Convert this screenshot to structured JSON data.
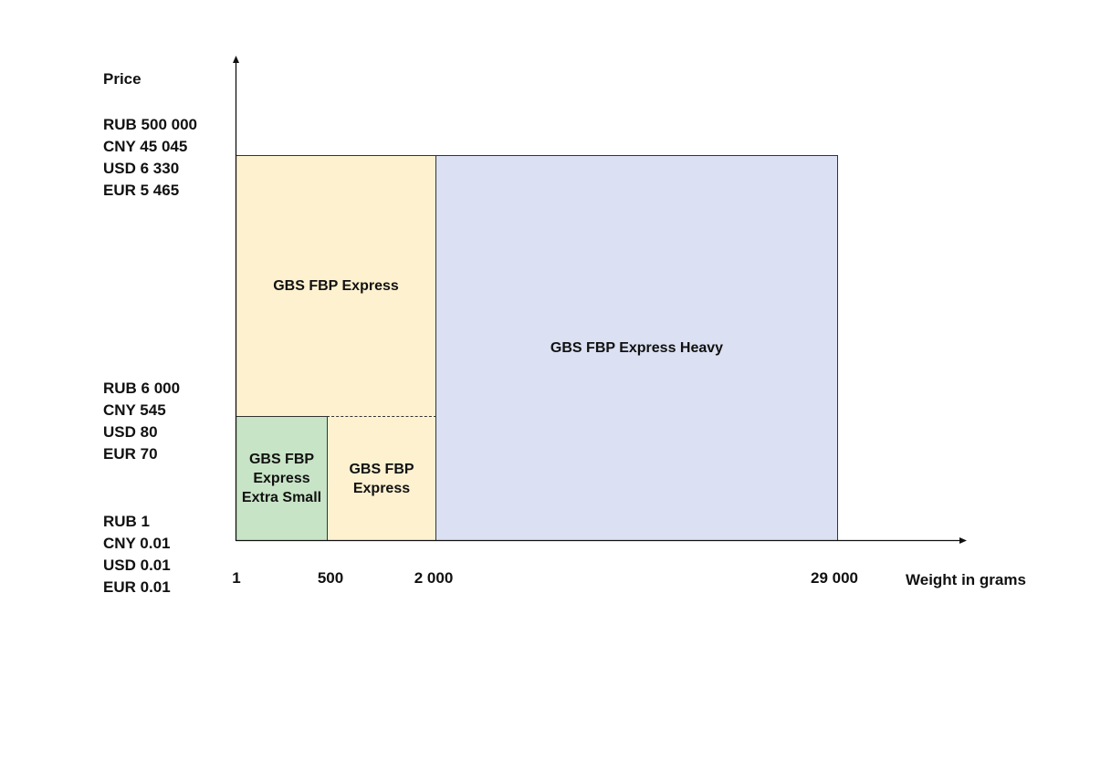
{
  "y_axis": {
    "title": "Price",
    "groups": [
      [
        "RUB 500 000",
        "CNY 45 045",
        "USD 6 330",
        "EUR 5 465"
      ],
      [
        "RUB 6 000",
        "CNY 545",
        "USD 80",
        "EUR 70"
      ],
      [
        "RUB 1",
        "CNY 0.01",
        "USD 0.01",
        "EUR 0.01"
      ]
    ]
  },
  "x_axis": {
    "title": "Weight in grams",
    "ticks": [
      "1",
      "500",
      "2 000",
      "29 000"
    ]
  },
  "regions": [
    {
      "name": "GBS FBP Express",
      "weight_from": 1,
      "weight_to": 2000,
      "price_tier": "RUB 6 000 – RUB 500 000",
      "color": "#fdf1d0"
    },
    {
      "name": "GBS FBP Express Heavy",
      "weight_from": 2000,
      "weight_to": 29000,
      "price_tier": "RUB 1 – RUB 500 000",
      "color": "#dbe0f2"
    },
    {
      "name_lines": [
        "GBS FBP",
        "Express",
        "Extra Small"
      ],
      "weight_from": 1,
      "weight_to": 500,
      "price_tier": "RUB 1 – RUB 6 000",
      "color": "#c8e4c6"
    },
    {
      "name_lines": [
        "GBS FBP",
        "Express"
      ],
      "weight_from": 500,
      "weight_to": 2000,
      "price_tier": "RUB 1 – RUB 6 000",
      "color": "#fdf1d0"
    }
  ]
}
